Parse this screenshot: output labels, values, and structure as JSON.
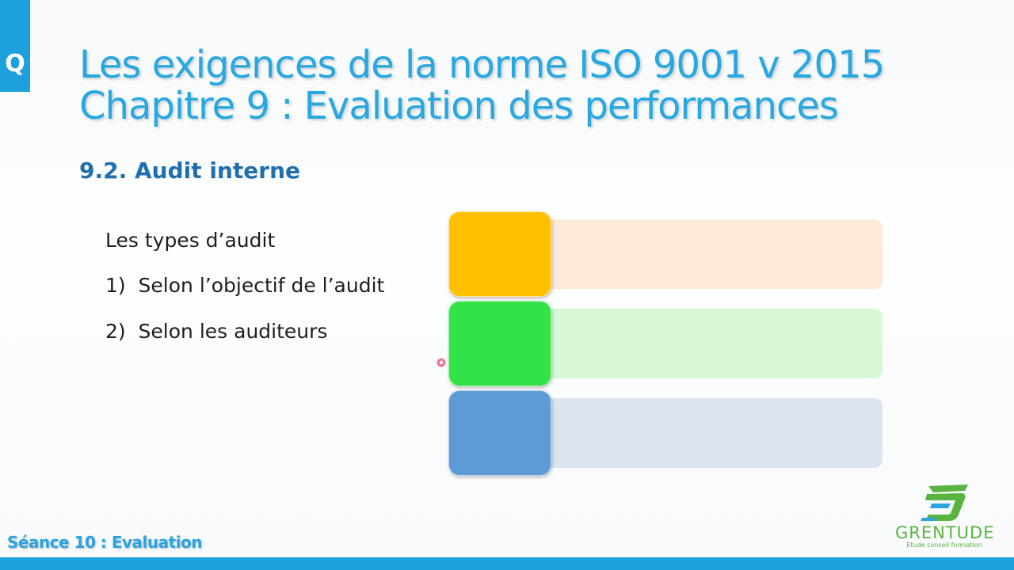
{
  "slide": {
    "corner_letter": "Q",
    "title_line1": "Les exigences de la norme ISO 9001 v 2015",
    "title_line2": "Chapitre 9 : Evaluation des performances",
    "section_heading": "9.2. Audit interne",
    "content": {
      "heading": "Les types d’audit",
      "items": [
        "1)  Selon l’objectif de l’audit",
        "2)  Selon les auditeurs"
      ]
    },
    "diagram": {
      "rows": [
        {
          "box_color": "#ffc000",
          "bar_color": "#fde9d9"
        },
        {
          "box_color": "#33e247",
          "bar_color": "#d7f8d6"
        },
        {
          "box_color": "#5e9bd6",
          "bar_color": "#dbe4f0"
        }
      ]
    },
    "footer_label": "Séance 10 : Evaluation",
    "logo": {
      "word": "GRENTUDE",
      "tagline": "Etude conseil formation",
      "icon": "grentude-logo-icon"
    }
  },
  "colors": {
    "accent_blue": "#1ea0dc",
    "title_blue": "#27a8e0",
    "heading_blue": "#1f6fae",
    "logo_green": "#5ab441"
  }
}
